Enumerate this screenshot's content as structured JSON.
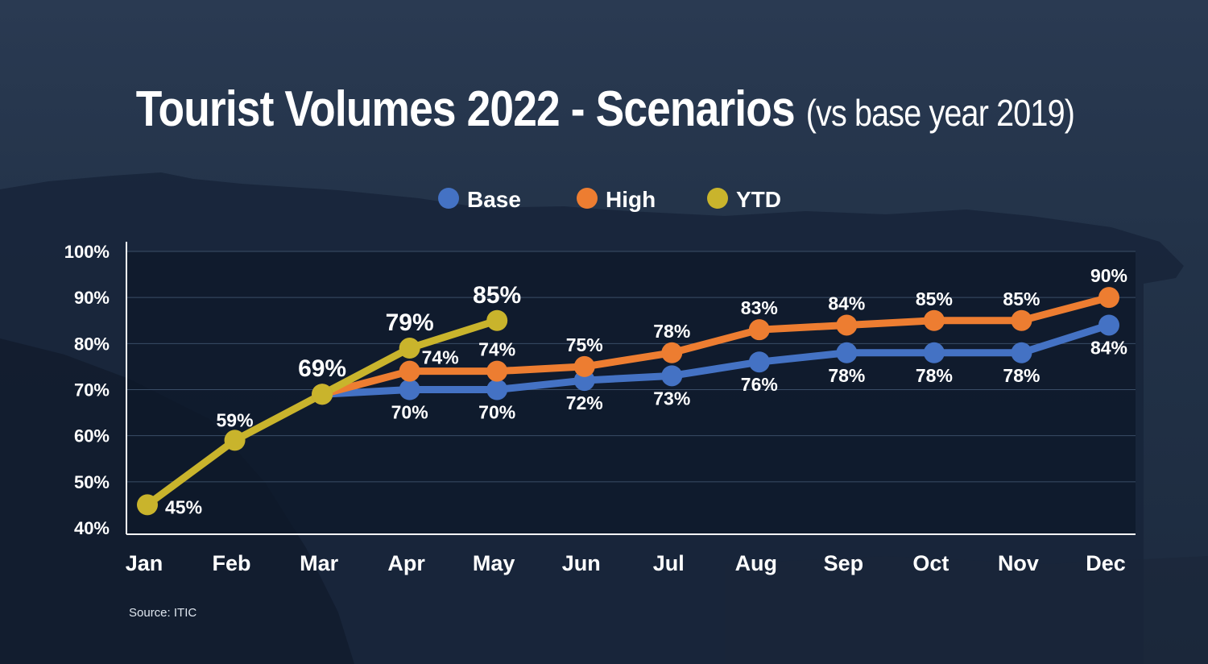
{
  "title": {
    "main": "Tourist Volumes 2022 - Scenarios",
    "sub": "(vs base year 2019)"
  },
  "source": "Source: ITIC",
  "colors": {
    "base": "#4472c4",
    "high": "#ed7d31",
    "ytd": "#c9b42c",
    "plot_bg": "#0d1828",
    "background": "#1e2d42"
  },
  "chart_data": {
    "type": "line",
    "categories": [
      "Jan",
      "Feb",
      "Mar",
      "Apr",
      "May",
      "Jun",
      "Jul",
      "Aug",
      "Sep",
      "Oct",
      "Nov",
      "Dec"
    ],
    "ylim": [
      40,
      100
    ],
    "yticks": [
      "40%",
      "50%",
      "60%",
      "70%",
      "80%",
      "90%",
      "100%"
    ],
    "grid": true,
    "legend_position": "top-center",
    "series": [
      {
        "name": "Base",
        "color": "#4472c4",
        "values": [
          null,
          null,
          69,
          70,
          70,
          72,
          73,
          76,
          78,
          78,
          78,
          84
        ],
        "labels": [
          null,
          null,
          null,
          "70%",
          "70%",
          "72%",
          "73%",
          "76%",
          "78%",
          "78%",
          "78%",
          "84%"
        ],
        "label_position": "below"
      },
      {
        "name": "High",
        "color": "#ed7d31",
        "values": [
          null,
          null,
          69,
          74,
          74,
          75,
          78,
          83,
          84,
          85,
          85,
          90
        ],
        "labels": [
          null,
          null,
          null,
          "74%",
          "74%",
          "75%",
          "78%",
          "83%",
          "84%",
          "85%",
          "85%",
          "90%"
        ],
        "label_position": "above"
      },
      {
        "name": "YTD",
        "color": "#c9b42c",
        "values": [
          45,
          59,
          69,
          79,
          85,
          null,
          null,
          null,
          null,
          null,
          null,
          null
        ],
        "labels": [
          "45%",
          "59%",
          "69%",
          "79%",
          "85%",
          null,
          null,
          null,
          null,
          null,
          null,
          null
        ],
        "label_position": "above"
      }
    ]
  }
}
